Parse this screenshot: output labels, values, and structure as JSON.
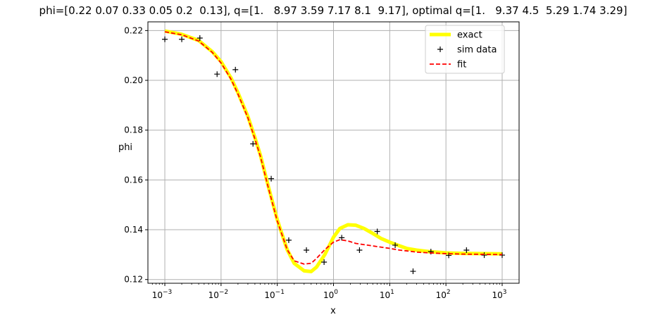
{
  "chart_data": {
    "type": "line",
    "title": "phi=[0.22 0.07 0.33 0.05 0.2  0.13], q=[1.   8.97 3.59 7.17 8.1  9.17], optimal q=[1.   9.37 4.5  5.29 1.74 3.29]",
    "xlabel": "x",
    "ylabel": "phi",
    "xscale": "log",
    "xlim": [
      0.0005,
      2000
    ],
    "ylim": [
      0.1185,
      0.2235
    ],
    "x_ticks": [
      {
        "value": 0.001,
        "base": "10",
        "exp": "−3"
      },
      {
        "value": 0.01,
        "base": "10",
        "exp": "−2"
      },
      {
        "value": 0.1,
        "base": "10",
        "exp": "−1"
      },
      {
        "value": 1,
        "base": "10",
        "exp": "0"
      },
      {
        "value": 10,
        "base": "10",
        "exp": "1"
      },
      {
        "value": 100,
        "base": "10",
        "exp": "2"
      },
      {
        "value": 1000,
        "base": "10",
        "exp": "3"
      }
    ],
    "y_ticks": [
      {
        "value": 0.12,
        "label": "0.12"
      },
      {
        "value": 0.14,
        "label": "0.14"
      },
      {
        "value": 0.16,
        "label": "0.16"
      },
      {
        "value": 0.18,
        "label": "0.18"
      },
      {
        "value": 0.2,
        "label": "0.20"
      },
      {
        "value": 0.22,
        "label": "0.22"
      }
    ],
    "grid": true,
    "legend_position": "top-right",
    "series": [
      {
        "name": "exact",
        "style": "solid-thick",
        "color": "#ffff00",
        "points": [
          [
            0.001,
            0.2198
          ],
          [
            0.002,
            0.2185
          ],
          [
            0.004,
            0.216
          ],
          [
            0.007,
            0.2115
          ],
          [
            0.01,
            0.2075
          ],
          [
            0.015,
            0.201
          ],
          [
            0.02,
            0.195
          ],
          [
            0.03,
            0.1855
          ],
          [
            0.04,
            0.177
          ],
          [
            0.05,
            0.17
          ],
          [
            0.07,
            0.157
          ],
          [
            0.1,
            0.144
          ],
          [
            0.15,
            0.132
          ],
          [
            0.2,
            0.1265
          ],
          [
            0.3,
            0.1235
          ],
          [
            0.4,
            0.1232
          ],
          [
            0.5,
            0.125
          ],
          [
            0.7,
            0.13
          ],
          [
            1.0,
            0.137
          ],
          [
            1.3,
            0.1405
          ],
          [
            1.8,
            0.142
          ],
          [
            2.5,
            0.1418
          ],
          [
            3.5,
            0.1405
          ],
          [
            5,
            0.1385
          ],
          [
            7,
            0.1365
          ],
          [
            10,
            0.135
          ],
          [
            15,
            0.1335
          ],
          [
            20,
            0.1325
          ],
          [
            30,
            0.1318
          ],
          [
            50,
            0.1312
          ],
          [
            100,
            0.1307
          ],
          [
            200,
            0.1305
          ],
          [
            500,
            0.1304
          ],
          [
            1000,
            0.1303
          ]
        ]
      },
      {
        "name": "sim data",
        "style": "marker-plus",
        "color": "#000000",
        "points": [
          [
            0.001,
            0.2165
          ],
          [
            0.002,
            0.2165
          ],
          [
            0.0042,
            0.217
          ],
          [
            0.0085,
            0.2025
          ],
          [
            0.018,
            0.2043
          ],
          [
            0.037,
            0.1745
          ],
          [
            0.078,
            0.1605
          ],
          [
            0.16,
            0.1358
          ],
          [
            0.33,
            0.1318
          ],
          [
            0.68,
            0.127
          ],
          [
            1.4,
            0.1368
          ],
          [
            2.9,
            0.1318
          ],
          [
            6.0,
            0.1393
          ],
          [
            12.5,
            0.1338
          ],
          [
            26,
            0.1233
          ],
          [
            54,
            0.1312
          ],
          [
            112,
            0.1297
          ],
          [
            232,
            0.1318
          ],
          [
            480,
            0.1298
          ],
          [
            1000,
            0.1298
          ]
        ]
      },
      {
        "name": "fit",
        "style": "dashed",
        "color": "#ff0000",
        "points": [
          [
            0.001,
            0.2195
          ],
          [
            0.002,
            0.2183
          ],
          [
            0.004,
            0.2158
          ],
          [
            0.007,
            0.2112
          ],
          [
            0.01,
            0.207
          ],
          [
            0.015,
            0.2005
          ],
          [
            0.02,
            0.1945
          ],
          [
            0.03,
            0.185
          ],
          [
            0.04,
            0.1765
          ],
          [
            0.05,
            0.1695
          ],
          [
            0.07,
            0.1565
          ],
          [
            0.1,
            0.1435
          ],
          [
            0.15,
            0.132
          ],
          [
            0.2,
            0.1275
          ],
          [
            0.3,
            0.1262
          ],
          [
            0.4,
            0.1265
          ],
          [
            0.5,
            0.1285
          ],
          [
            0.7,
            0.132
          ],
          [
            1.0,
            0.135
          ],
          [
            1.3,
            0.136
          ],
          [
            1.8,
            0.1355
          ],
          [
            2.5,
            0.1345
          ],
          [
            3.5,
            0.134
          ],
          [
            5,
            0.1335
          ],
          [
            7,
            0.133
          ],
          [
            10,
            0.1325
          ],
          [
            15,
            0.1318
          ],
          [
            20,
            0.1315
          ],
          [
            30,
            0.131
          ],
          [
            50,
            0.1307
          ],
          [
            100,
            0.1304
          ],
          [
            200,
            0.1302
          ],
          [
            500,
            0.1301
          ],
          [
            1000,
            0.13
          ]
        ]
      }
    ]
  }
}
